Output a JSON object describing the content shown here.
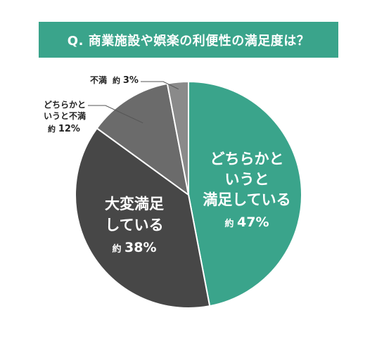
{
  "title": "Q. 商業施設や娯楽の利便性の満足度は？",
  "colors": {
    "banner": "#3aa48b",
    "slices": [
      "#3aa48b",
      "#474747",
      "#6b6b6b",
      "#8a8a8a"
    ],
    "leader": "#555555"
  },
  "chart_data": {
    "type": "pie",
    "title": "Q. 商業施設や娯楽の利便性の満足度は？",
    "slices": [
      {
        "label": "どちらかというと満足している",
        "value": 47,
        "value_label": "約 47%"
      },
      {
        "label": "大変満足している",
        "value": 38,
        "value_label": "約 38%"
      },
      {
        "label": "どちらかというと不満",
        "value": 12,
        "value_label": "約 12%"
      },
      {
        "label": "不満",
        "value": 3,
        "value_label": "約 3%"
      }
    ],
    "labels_display": {
      "slice0_lines": [
        "どちらかと",
        "いうと",
        "満足している"
      ],
      "slice1_lines": [
        "大変満足",
        "している"
      ],
      "slice2_lines": [
        "どちらかと",
        "いうと不満"
      ],
      "slice3_name": "不満"
    },
    "value_prefix": "約",
    "value_numbers": [
      "47%",
      "38%",
      "12%",
      "3%"
    ],
    "start": "12 o'clock",
    "direction": "clockwise"
  }
}
